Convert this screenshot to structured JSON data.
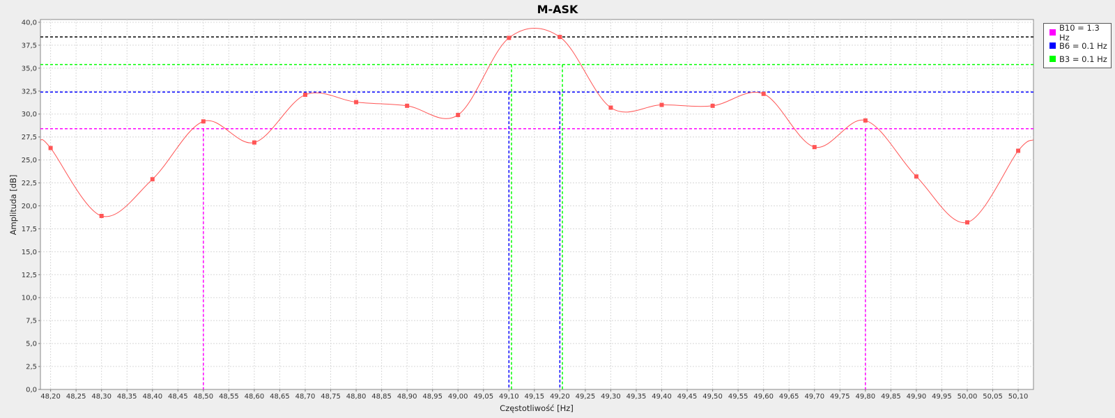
{
  "chart_data": {
    "type": "line",
    "title": "M-ASK",
    "xlabel": "Częstotliwość [Hz]",
    "ylabel": "Amplituda [dB]",
    "xlim": [
      48.18,
      50.13
    ],
    "ylim": [
      0,
      40.3
    ],
    "x_tick_start": 48.2,
    "x_tick_step": 0.05,
    "x_tick_end": 50.1,
    "y_tick_step": 2.5,
    "y_tick_end": 40,
    "decimal_separator": ",",
    "grid": true,
    "legend_position": "right-top",
    "series": [
      {
        "color": "#ff5555",
        "x": [
          48.2,
          48.3,
          48.4,
          48.5,
          48.6,
          48.7,
          48.8,
          48.9,
          49.0,
          49.1,
          49.2,
          49.3,
          49.4,
          49.5,
          49.6,
          49.7,
          49.8,
          49.9,
          50.0,
          50.1
        ],
        "y": [
          26.3,
          18.9,
          22.9,
          29.2,
          26.9,
          32.1,
          31.3,
          30.9,
          29.9,
          38.3,
          38.4,
          30.7,
          31.0,
          30.9,
          32.2,
          26.4,
          29.3,
          23.2,
          18.2,
          26.0
        ],
        "curve_start": [
          48.18,
          27.2
        ],
        "curve_end": [
          50.13,
          27.2
        ]
      }
    ],
    "levels": [
      {
        "name": "B10 = 1.3 Hz",
        "color": "#ff00ff",
        "level": 28.4,
        "markers": [
          48.5,
          49.8
        ]
      },
      {
        "name": "B6 = 0.1 Hz",
        "color": "#0000ff",
        "level": 32.4,
        "markers": [
          49.1,
          49.2
        ]
      },
      {
        "name": "B3 = 0.1 Hz",
        "color": "#00ff00",
        "level": 35.4,
        "markers": [
          49.105,
          49.205
        ]
      }
    ],
    "max_level": {
      "color": "#000000",
      "level": 38.4
    }
  }
}
